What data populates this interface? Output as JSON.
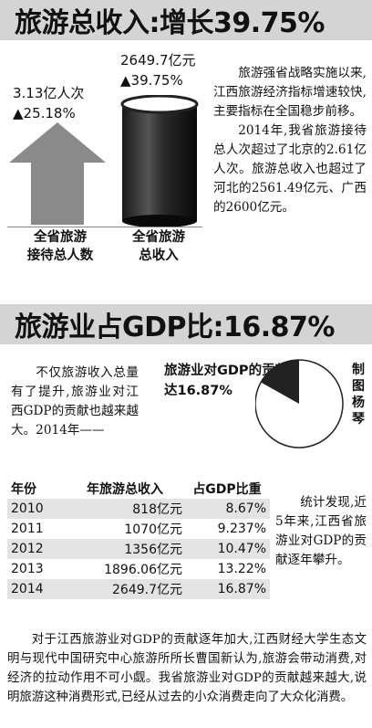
{
  "section1": {
    "title": "旅游总收入:增长39.75%",
    "arrow_stat": {
      "value": "3.13亿人次",
      "change": "▲25.18%",
      "label_l1": "全省旅游",
      "label_l2": "接待总人数"
    },
    "cylinder_stat": {
      "value": "2649.7亿元",
      "change": "▲39.75%",
      "label_l1": "全省旅游",
      "label_l2": "总收入"
    },
    "para1": "旅游强省战略实施以来,江西旅游经济指标增速较快,主要指标在全国稳步前移。",
    "para2": "2014年,我省旅游接待总人次超过了北京的2.61亿人次。旅游总收入也超过了河北的2561.49亿元、广西的2600亿元。"
  },
  "section2": {
    "title": "旅游业占GDP比:16.87%",
    "intro": "不仅旅游收入总量有了提升,旅游业对江西GDP的贡献也越来越大。2014年——",
    "pie_label_l1": "旅游业对GDP的贡献",
    "pie_label_l2": "达16.87%",
    "pie_share": 16.87,
    "credit": "制图 杨琴",
    "table": {
      "headers": [
        "年份",
        "年旅游总收入",
        "占GDP比重"
      ],
      "rows": [
        [
          "2010",
          "818亿元",
          "8.67%"
        ],
        [
          "2011",
          "1070亿元",
          "9.237%"
        ],
        [
          "2012",
          "1356亿元",
          "10.47%"
        ],
        [
          "2013",
          "1896.06亿元",
          "13.22%"
        ],
        [
          "2014",
          "2649.7亿元",
          "16.87%"
        ]
      ]
    },
    "side_note": "统计发现,近5年来,江西省旅游业对GDP的贡献逐年攀升。",
    "bottom_para": "对于江西旅游业对GDP的贡献逐年加大,江西财经大学生态文明与现代中国研究中心旅游所所长曹国新认为,旅游会带动消费,对经济的拉动作用不可小觑。我省旅游业对GDP的贡献越来越大,说明旅游这种消费形式,已经从过去的小众消费走向了大众化消费。"
  },
  "colors": {
    "title_band": "#d4d4d4",
    "arrow": "#8a8a8a",
    "row_shade": "#e3e3e3"
  }
}
